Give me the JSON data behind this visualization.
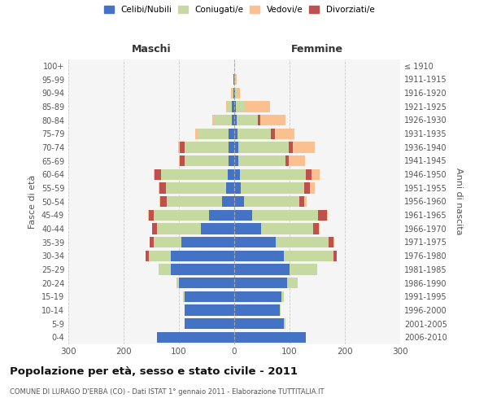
{
  "age_groups": [
    "0-4",
    "5-9",
    "10-14",
    "15-19",
    "20-24",
    "25-29",
    "30-34",
    "35-39",
    "40-44",
    "45-49",
    "50-54",
    "55-59",
    "60-64",
    "65-69",
    "70-74",
    "75-79",
    "80-84",
    "85-89",
    "90-94",
    "95-99",
    "100+"
  ],
  "birth_years": [
    "2006-2010",
    "2001-2005",
    "1996-2000",
    "1991-1995",
    "1986-1990",
    "1981-1985",
    "1976-1980",
    "1971-1975",
    "1966-1970",
    "1961-1965",
    "1956-1960",
    "1951-1955",
    "1946-1950",
    "1941-1945",
    "1936-1940",
    "1931-1935",
    "1926-1930",
    "1921-1925",
    "1916-1920",
    "1911-1915",
    "≤ 1910"
  ],
  "males": {
    "celibi": [
      140,
      90,
      90,
      90,
      100,
      115,
      115,
      95,
      60,
      45,
      22,
      14,
      12,
      10,
      10,
      10,
      5,
      4,
      2,
      1,
      0
    ],
    "coniugati": [
      0,
      0,
      0,
      2,
      5,
      20,
      40,
      50,
      80,
      100,
      100,
      110,
      120,
      80,
      80,
      55,
      30,
      8,
      3,
      1,
      0
    ],
    "vedovi": [
      0,
      0,
      0,
      0,
      0,
      2,
      0,
      0,
      0,
      1,
      1,
      1,
      1,
      2,
      3,
      5,
      5,
      3,
      1,
      0,
      0
    ],
    "divorziati": [
      0,
      0,
      0,
      0,
      0,
      0,
      5,
      8,
      8,
      10,
      12,
      12,
      12,
      8,
      8,
      0,
      0,
      0,
      0,
      0,
      0
    ]
  },
  "females": {
    "nubili": [
      130,
      90,
      82,
      85,
      95,
      100,
      90,
      75,
      48,
      32,
      18,
      12,
      10,
      8,
      8,
      6,
      4,
      3,
      2,
      0,
      0
    ],
    "coniugate": [
      0,
      2,
      2,
      5,
      20,
      50,
      90,
      95,
      95,
      120,
      100,
      115,
      120,
      85,
      90,
      60,
      38,
      16,
      4,
      2,
      0
    ],
    "vedove": [
      0,
      0,
      0,
      0,
      0,
      0,
      0,
      1,
      1,
      2,
      5,
      8,
      15,
      30,
      40,
      35,
      45,
      45,
      5,
      2,
      0
    ],
    "divorziate": [
      0,
      0,
      0,
      0,
      0,
      0,
      5,
      10,
      10,
      15,
      8,
      10,
      10,
      5,
      8,
      8,
      5,
      0,
      0,
      0,
      0
    ]
  },
  "color_celibi": "#4472C4",
  "color_coniugati": "#C6D9A0",
  "color_vedovi": "#FAC090",
  "color_divorziati": "#C0504D",
  "title": "Popolazione per età, sesso e stato civile - 2011",
  "subtitle": "COMUNE DI LURAGO D'ERBA (CO) - Dati ISTAT 1° gennaio 2011 - Elaborazione TUTTITALIA.IT",
  "label_maschi": "Maschi",
  "label_femmine": "Femmine",
  "ylabel_left": "Fasce di età",
  "ylabel_right": "Anni di nascita",
  "xlim": 300,
  "bg_color": "#f5f5f5",
  "grid_color": "#cccccc"
}
